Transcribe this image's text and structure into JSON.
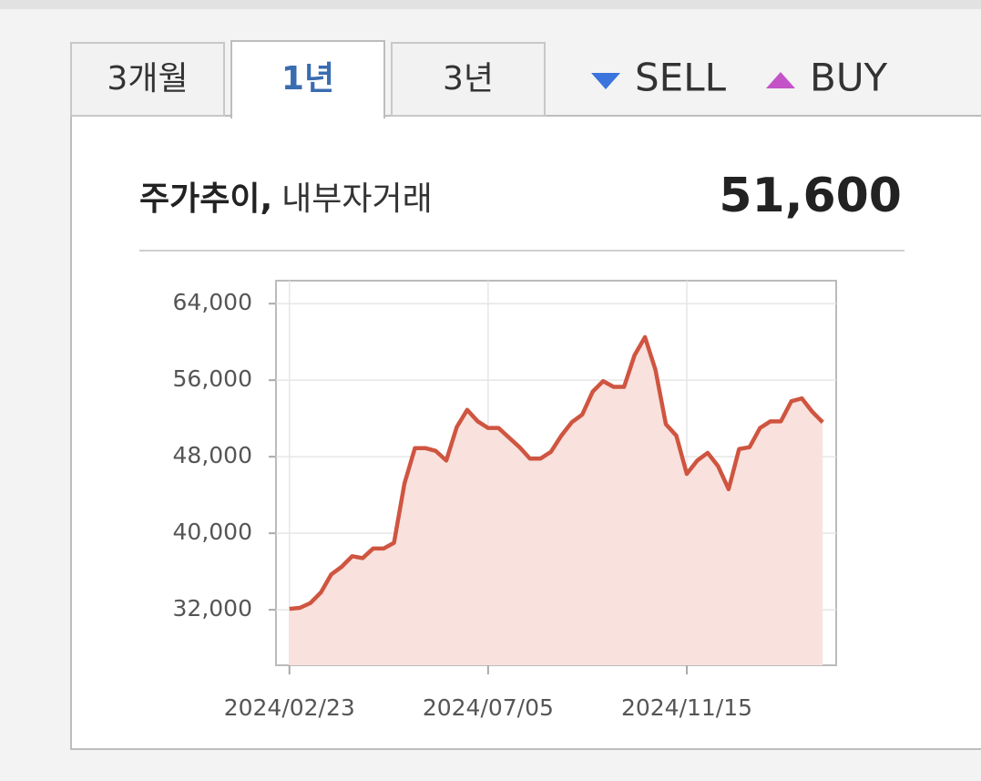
{
  "tabs": [
    {
      "label": "3개월",
      "active": false
    },
    {
      "label": "1년",
      "active": true
    },
    {
      "label": "3년",
      "active": false
    }
  ],
  "legend": [
    {
      "label": "SELL",
      "color": "#3b74dc",
      "marker": "down"
    },
    {
      "label": "BUY",
      "color": "#c453c8",
      "marker": "up"
    }
  ],
  "header": {
    "title": "주가추이,",
    "subtitle": "내부자거래",
    "price": "51,600"
  },
  "chart_data": {
    "type": "line",
    "color": "#cf5540",
    "fill_color": "#f9e1dd",
    "grid": true,
    "x": [
      "2024/02/23",
      "2024/03/01",
      "2024/03/08",
      "2024/03/15",
      "2024/03/22",
      "2024/03/29",
      "2024/04/05",
      "2024/04/12",
      "2024/04/19",
      "2024/04/26",
      "2024/05/03",
      "2024/05/10",
      "2024/05/17",
      "2024/05/24",
      "2024/05/31",
      "2024/06/07",
      "2024/06/14",
      "2024/06/21",
      "2024/06/28",
      "2024/07/05",
      "2024/07/12",
      "2024/07/19",
      "2024/07/26",
      "2024/08/02",
      "2024/08/09",
      "2024/08/16",
      "2024/08/23",
      "2024/08/30",
      "2024/09/06",
      "2024/09/13",
      "2024/09/20",
      "2024/09/27",
      "2024/10/04",
      "2024/10/11",
      "2024/10/18",
      "2024/10/25",
      "2024/11/01",
      "2024/11/08",
      "2024/11/15",
      "2024/11/22",
      "2024/11/29",
      "2024/12/06",
      "2024/12/13",
      "2024/12/20",
      "2024/12/27",
      "2025/01/03",
      "2025/01/10",
      "2025/01/17",
      "2025/01/24",
      "2025/01/31",
      "2025/02/07",
      "2025/02/14"
    ],
    "values": [
      32100,
      32200,
      32700,
      33800,
      35700,
      36500,
      37600,
      37400,
      38400,
      38400,
      39000,
      45200,
      48900,
      48900,
      48600,
      47600,
      51100,
      52900,
      51700,
      51000,
      51000,
      50000,
      49000,
      47800,
      47800,
      48500,
      50200,
      51600,
      52400,
      54800,
      55900,
      55300,
      55300,
      58600,
      60500,
      57100,
      51400,
      50200,
      46200,
      47600,
      48400,
      47000,
      44600,
      48800,
      49000,
      51000,
      51700,
      51700,
      53800,
      54100,
      52700,
      51600
    ],
    "xlim": [
      "2024/02/14",
      "2025/02/23"
    ],
    "xticks": [
      "2024/02/23",
      "2024/07/05",
      "2024/11/15"
    ],
    "ylim": [
      26200,
      66400
    ],
    "yticks": [
      {
        "value": 32000,
        "label": "32,000"
      },
      {
        "value": 40000,
        "label": "40,000"
      },
      {
        "value": 48000,
        "label": "48,000"
      },
      {
        "value": 56000,
        "label": "56,000"
      },
      {
        "value": 64000,
        "label": "64,000"
      }
    ]
  }
}
